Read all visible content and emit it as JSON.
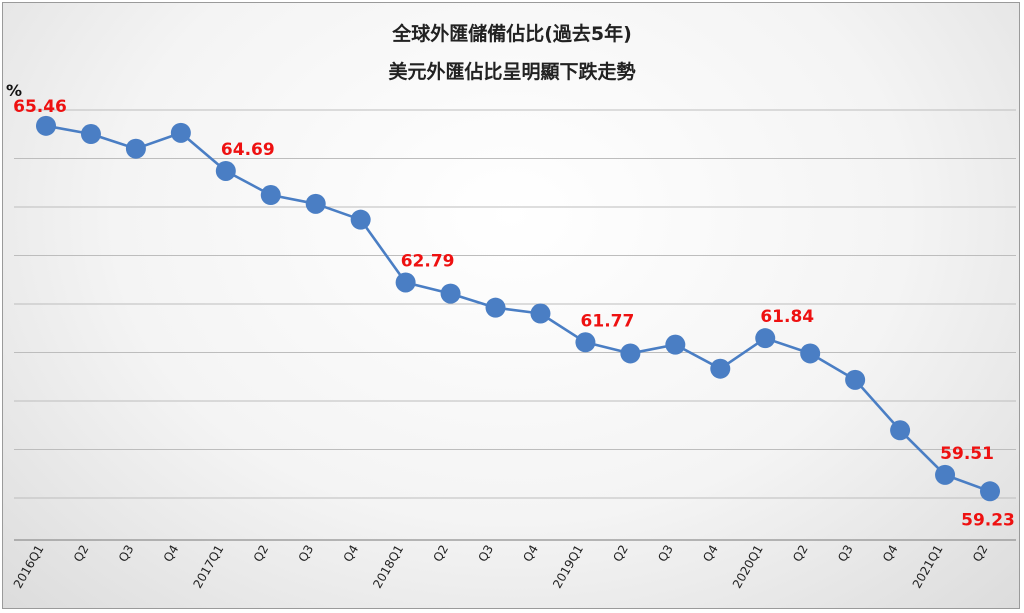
{
  "chart_data": {
    "type": "line",
    "title": "全球外匯儲備佔比(過去5年)",
    "subtitle": "美元外匯佔比呈明顯下跌走勢",
    "ylabel": "%",
    "xlabel": "",
    "ylim": [
      58.4,
      65.9
    ],
    "grid": true,
    "legend": "none",
    "color": "#4a7ec4",
    "label_color": "#ee1111",
    "categories": [
      "2016Q1",
      "Q2",
      "Q3",
      "Q4",
      "2017Q1",
      "Q2",
      "Q3",
      "Q4",
      "2018Q1",
      "Q2",
      "Q3",
      "Q4",
      "2019Q1",
      "Q2",
      "Q3",
      "Q4",
      "2020Q1",
      "Q2",
      "Q3",
      "Q4",
      "2021Q1",
      "Q2"
    ],
    "values": [
      65.46,
      65.32,
      65.07,
      65.34,
      64.69,
      64.28,
      64.13,
      63.86,
      62.79,
      62.6,
      62.36,
      62.26,
      61.77,
      61.58,
      61.73,
      61.32,
      61.84,
      61.58,
      61.13,
      60.27,
      59.51,
      59.23
    ],
    "data_labels": [
      {
        "index": 0,
        "text": "65.46"
      },
      {
        "index": 4,
        "text": "64.69"
      },
      {
        "index": 8,
        "text": "62.79"
      },
      {
        "index": 12,
        "text": "61.77"
      },
      {
        "index": 16,
        "text": "61.84"
      },
      {
        "index": 20,
        "text": "59.51"
      },
      {
        "index": 21,
        "text": "59.23"
      }
    ]
  }
}
